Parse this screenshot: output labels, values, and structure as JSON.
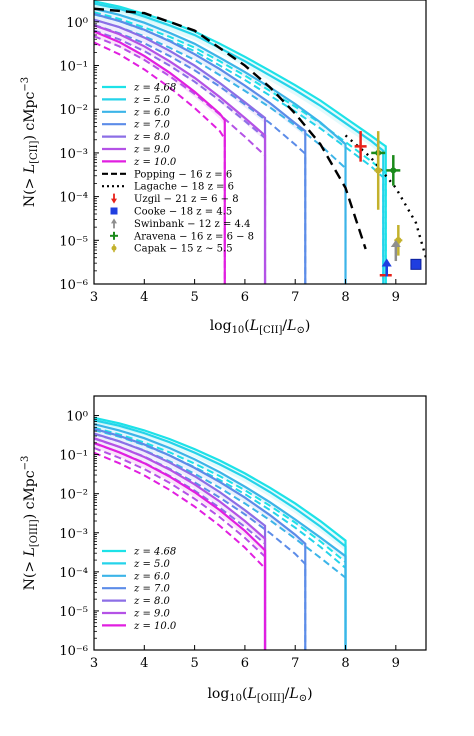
{
  "chart_data": [
    {
      "type": "line",
      "panel": "top",
      "xlabel": "log10(L[CII]/L⊙)",
      "ylabel": "N(> L[CII]) cMpc−3",
      "xlim": [
        3,
        9.6
      ],
      "ylim_log10": [
        -6,
        0.5
      ],
      "x_ticks": [
        "3",
        "4",
        "5",
        "6",
        "7",
        "8",
        "9"
      ],
      "y_ticks": [
        "10⁰",
        "10⁻¹",
        "10⁻²",
        "10⁻³",
        "10⁻⁴",
        "10⁻⁵",
        "10⁻⁶"
      ],
      "legend_position": "lower-left",
      "series": [
        {
          "name": "z = 4.68",
          "color": "#1de2e8",
          "style": "solid",
          "x": [
            3.0,
            3.5,
            4.0,
            4.5,
            5.0,
            5.5,
            6.0,
            6.5,
            7.0,
            7.5,
            8.0,
            8.5,
            8.8
          ],
          "log10N": [
            0.47,
            0.35,
            0.18,
            0.0,
            -0.22,
            -0.5,
            -0.8,
            -1.12,
            -1.45,
            -1.8,
            -2.2,
            -2.6,
            -2.85
          ]
        },
        {
          "name": "z = 5.0",
          "color": "#25d3ea",
          "style": "solid",
          "x": [
            3.0,
            3.5,
            4.0,
            4.5,
            5.0,
            5.5,
            6.0,
            6.5,
            7.0,
            7.5,
            8.0,
            8.5,
            8.75
          ],
          "log10N": [
            0.42,
            0.3,
            0.12,
            -0.08,
            -0.3,
            -0.6,
            -0.9,
            -1.23,
            -1.56,
            -1.92,
            -2.32,
            -2.72,
            -2.95
          ]
        },
        {
          "name": "z = 6.0",
          "color": "#3cb4e8",
          "style": "solid",
          "x": [
            3.0,
            3.5,
            4.0,
            4.5,
            5.0,
            5.5,
            6.0,
            6.5,
            7.0,
            7.5,
            8.0
          ],
          "log10N": [
            0.3,
            0.16,
            -0.02,
            -0.25,
            -0.5,
            -0.82,
            -1.15,
            -1.5,
            -1.88,
            -2.3,
            -2.8
          ]
        },
        {
          "name": "z = 7.0",
          "color": "#5c8ce8",
          "style": "solid",
          "x": [
            3.0,
            3.5,
            4.0,
            4.5,
            5.0,
            5.5,
            6.0,
            6.5,
            7.0,
            7.2
          ],
          "log10N": [
            0.18,
            0.02,
            -0.18,
            -0.44,
            -0.74,
            -1.08,
            -1.46,
            -1.86,
            -2.32,
            -2.5
          ]
        },
        {
          "name": "z = 8.0",
          "color": "#8c6ee6",
          "style": "solid",
          "x": [
            3.0,
            3.5,
            4.0,
            4.5,
            5.0,
            5.5,
            6.0,
            6.4
          ],
          "log10N": [
            0.05,
            -0.12,
            -0.36,
            -0.66,
            -1.0,
            -1.4,
            -1.84,
            -2.2
          ]
        },
        {
          "name": "z = 9.0",
          "color": "#b452e6",
          "style": "solid",
          "x": [
            3.0,
            3.5,
            4.0,
            4.5,
            5.0,
            5.5,
            6.0,
            6.4
          ],
          "log10N": [
            -0.08,
            -0.28,
            -0.56,
            -0.9,
            -1.28,
            -1.72,
            -2.2,
            -2.6
          ]
        },
        {
          "name": "z = 10.0",
          "color": "#e11fe0",
          "style": "solid",
          "x": [
            3.0,
            3.5,
            4.0,
            4.5,
            5.0,
            5.5,
            5.6
          ],
          "log10N": [
            -0.22,
            -0.46,
            -0.78,
            -1.16,
            -1.6,
            -2.1,
            -2.25
          ]
        },
        {
          "name": "Popping − 16 z = 6",
          "color": "#000000",
          "style": "dashed",
          "x": [
            3.0,
            4.0,
            5.0,
            6.0,
            6.5,
            7.0,
            7.5,
            8.0,
            8.4
          ],
          "log10N": [
            0.3,
            0.2,
            -0.2,
            -1.0,
            -1.5,
            -2.1,
            -2.8,
            -3.8,
            -5.2
          ]
        },
        {
          "name": "Lagache − 18 z = 6",
          "color": "#000000",
          "style": "dotted",
          "x": [
            8.0,
            8.5,
            9.0,
            9.4,
            9.6
          ],
          "log10N": [
            -2.6,
            -3.1,
            -3.8,
            -4.6,
            -5.4
          ]
        }
      ],
      "observations": [
        {
          "name": "Uzgil − 21 z = 6 − 8",
          "color": "#e8211a",
          "marker": "arrow-down"
        },
        {
          "name": "Cooke − 18 z = 4.5",
          "color": "#1f3ee0",
          "marker": "square"
        },
        {
          "name": "Swinbank − 12 z = 4.4",
          "color": "#8e8e8e",
          "marker": "arrow-up"
        },
        {
          "name": "Aravena − 16 z = 6 − 8",
          "color": "#1a8a1a",
          "marker": "plus"
        },
        {
          "name": "Capak − 15 z ∼ 5.5",
          "color": "#c3b12c",
          "marker": "circle"
        }
      ]
    },
    {
      "type": "line",
      "panel": "bottom",
      "xlabel": "log10(L[OIII]/L⊙)",
      "ylabel": "N(> L[OIII]) cMpc−3",
      "xlim": [
        3,
        9.6
      ],
      "ylim_log10": [
        -6,
        0.5
      ],
      "x_ticks": [
        "3",
        "4",
        "5",
        "6",
        "7",
        "8",
        "9"
      ],
      "y_ticks": [
        "10⁰",
        "10⁻¹",
        "10⁻²",
        "10⁻³",
        "10⁻⁴",
        "10⁻⁵",
        "10⁻⁶"
      ],
      "legend_position": "lower-left",
      "series": [
        {
          "name": "z = 4.68",
          "color": "#1de2e8",
          "style": "solid",
          "x": [
            3.0,
            3.5,
            4.0,
            4.5,
            5.0,
            5.5,
            6.0,
            6.5,
            7.0,
            7.5,
            8.0
          ],
          "log10N": [
            -0.06,
            -0.2,
            -0.38,
            -0.6,
            -0.86,
            -1.15,
            -1.48,
            -1.85,
            -2.25,
            -2.7,
            -3.2
          ]
        },
        {
          "name": "z = 5.0",
          "color": "#25d3ea",
          "style": "solid",
          "x": [
            3.0,
            3.5,
            4.0,
            4.5,
            5.0,
            5.5,
            6.0,
            6.5,
            7.0,
            7.5,
            8.0
          ],
          "log10N": [
            -0.12,
            -0.26,
            -0.45,
            -0.68,
            -0.95,
            -1.25,
            -1.58,
            -1.96,
            -2.38,
            -2.84,
            -3.35
          ]
        },
        {
          "name": "z = 6.0",
          "color": "#3cb4e8",
          "style": "solid",
          "x": [
            3.0,
            3.5,
            4.0,
            4.5,
            5.0,
            5.5,
            6.0,
            6.5,
            7.0,
            7.5,
            8.0
          ],
          "log10N": [
            -0.22,
            -0.38,
            -0.58,
            -0.83,
            -1.12,
            -1.45,
            -1.82,
            -2.22,
            -2.66,
            -3.12,
            -3.6
          ]
        },
        {
          "name": "z = 7.0",
          "color": "#5c8ce8",
          "style": "solid",
          "x": [
            3.0,
            3.5,
            4.0,
            4.5,
            5.0,
            5.5,
            6.0,
            6.5,
            7.0,
            7.2
          ],
          "log10N": [
            -0.34,
            -0.52,
            -0.74,
            -1.02,
            -1.34,
            -1.7,
            -2.1,
            -2.55,
            -3.05,
            -3.28
          ]
        },
        {
          "name": "z = 8.0",
          "color": "#8c6ee6",
          "style": "solid",
          "x": [
            3.0,
            3.5,
            4.0,
            4.5,
            5.0,
            5.5,
            6.0,
            6.4
          ],
          "log10N": [
            -0.46,
            -0.66,
            -0.9,
            -1.2,
            -1.55,
            -1.96,
            -2.42,
            -2.82
          ]
        },
        {
          "name": "z = 9.0",
          "color": "#b452e6",
          "style": "solid",
          "x": [
            3.0,
            3.5,
            4.0,
            4.5,
            5.0,
            5.5,
            6.0,
            6.4
          ],
          "log10N": [
            -0.58,
            -0.8,
            -1.06,
            -1.38,
            -1.76,
            -2.2,
            -2.7,
            -3.15
          ]
        },
        {
          "name": "z = 10.0",
          "color": "#e11fe0",
          "style": "solid",
          "x": [
            3.0,
            3.5,
            4.0,
            4.5,
            5.0,
            5.5,
            6.0,
            6.4
          ],
          "log10N": [
            -0.7,
            -0.94,
            -1.22,
            -1.56,
            -1.96,
            -2.42,
            -2.95,
            -3.45
          ]
        }
      ]
    }
  ]
}
